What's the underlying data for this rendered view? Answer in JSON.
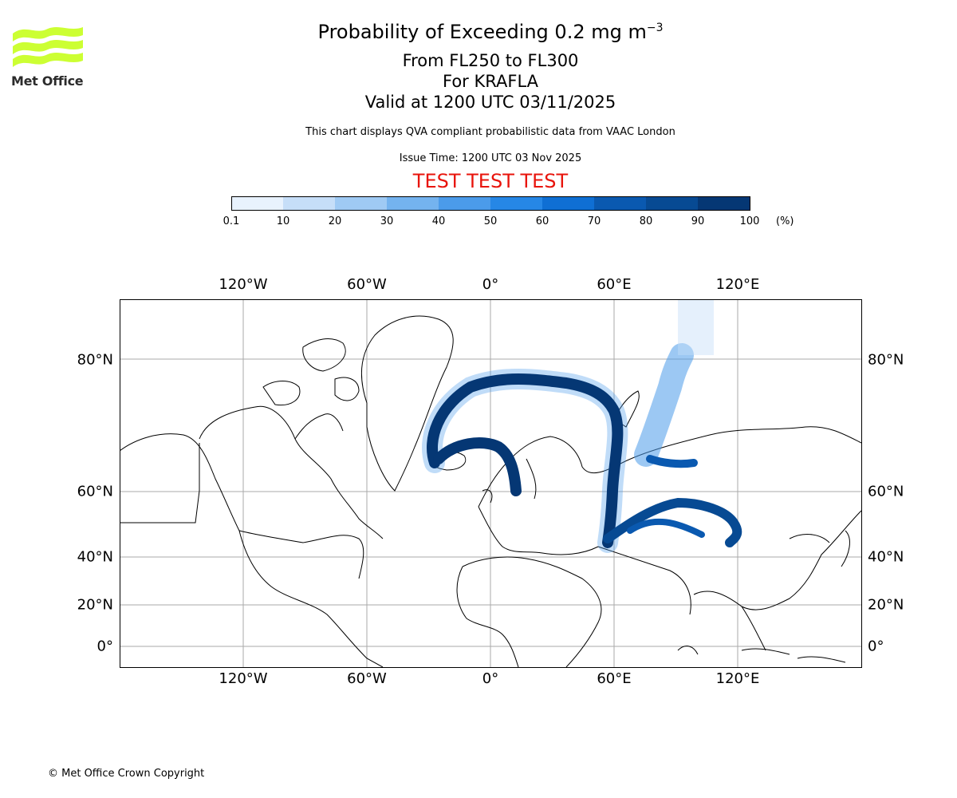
{
  "logo": {
    "text": "Met Office",
    "color": "#ccff33",
    "text_color": "#2b2b2b",
    "icon": "met-office-waves-logo"
  },
  "title": {
    "line1_prefix": "Probability of Exceeding 0.2 mg m",
    "line1_sup": "−3",
    "line2": "From FL250 to FL300",
    "line3": "For KRAFLA",
    "line4": "Valid at 1200 UTC 03/11/2025"
  },
  "subtitle": "This chart displays QVA compliant probabilistic data from VAAC London",
  "issue_time": "Issue Time: 1200 UTC 03 Nov 2025",
  "test_banner": {
    "text": "TEST TEST TEST",
    "color": "#e8140c"
  },
  "colorbar": {
    "ticks": [
      "0.1",
      "10",
      "20",
      "30",
      "40",
      "50",
      "60",
      "70",
      "80",
      "90",
      "100"
    ],
    "unit": "(%)",
    "colors": [
      "#e8f2fd",
      "#c6def8",
      "#9fcaf4",
      "#74b3ef",
      "#4b9bea",
      "#2687e6",
      "#0f6fd4",
      "#0a59b0",
      "#074a93",
      "#053774"
    ]
  },
  "map": {
    "lon_labels": [
      "120°W",
      "60°W",
      "0°",
      "60°E",
      "120°E"
    ],
    "lat_labels": [
      "80°N",
      "60°N",
      "40°N",
      "20°N",
      "0°"
    ],
    "plume_color": "#053774"
  },
  "copyright": "© Met Office Crown Copyright"
}
